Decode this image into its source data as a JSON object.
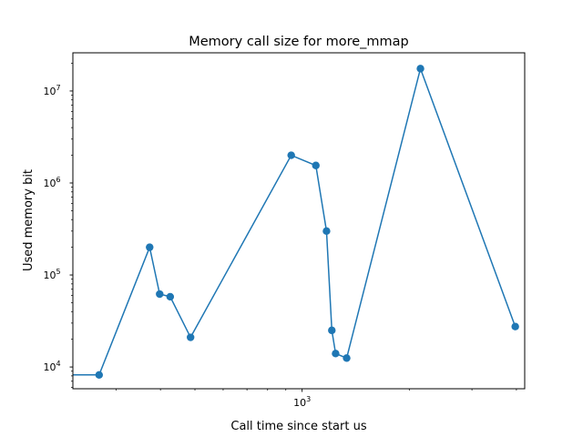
{
  "chart_data": {
    "type": "line",
    "title": "Memory call size for more_mmap",
    "xlabel": "Call time since start us",
    "ylabel": "Used memory bit",
    "xscale": "log",
    "yscale": "log",
    "xlim": [
      227,
      4220
    ],
    "ylim": [
      5800,
      26000000
    ],
    "grid": false,
    "legend": "none",
    "color": "#1f77b4",
    "marker": "circle",
    "x_ticks": [
      {
        "value": 1000,
        "base": "10",
        "exp": "3"
      }
    ],
    "y_ticks": [
      {
        "value": 10000,
        "base": "10",
        "exp": "4"
      },
      {
        "value": 100000,
        "base": "10",
        "exp": "5"
      },
      {
        "value": 1000000,
        "base": "10",
        "exp": "6"
      },
      {
        "value": 10000000,
        "base": "10",
        "exp": "7"
      }
    ],
    "series": [
      {
        "x": [
          227,
          269,
          373,
          398,
          426,
          486,
          932,
          1093,
          1171,
          1212,
          1242,
          1334,
          2150,
          3970
        ],
        "y": [
          8200,
          8200,
          200000,
          62000,
          58000,
          21000,
          2000000,
          1550000,
          300000,
          25000,
          14000,
          12500,
          17500000,
          27500
        ],
        "marker_from_index": 1
      }
    ]
  }
}
